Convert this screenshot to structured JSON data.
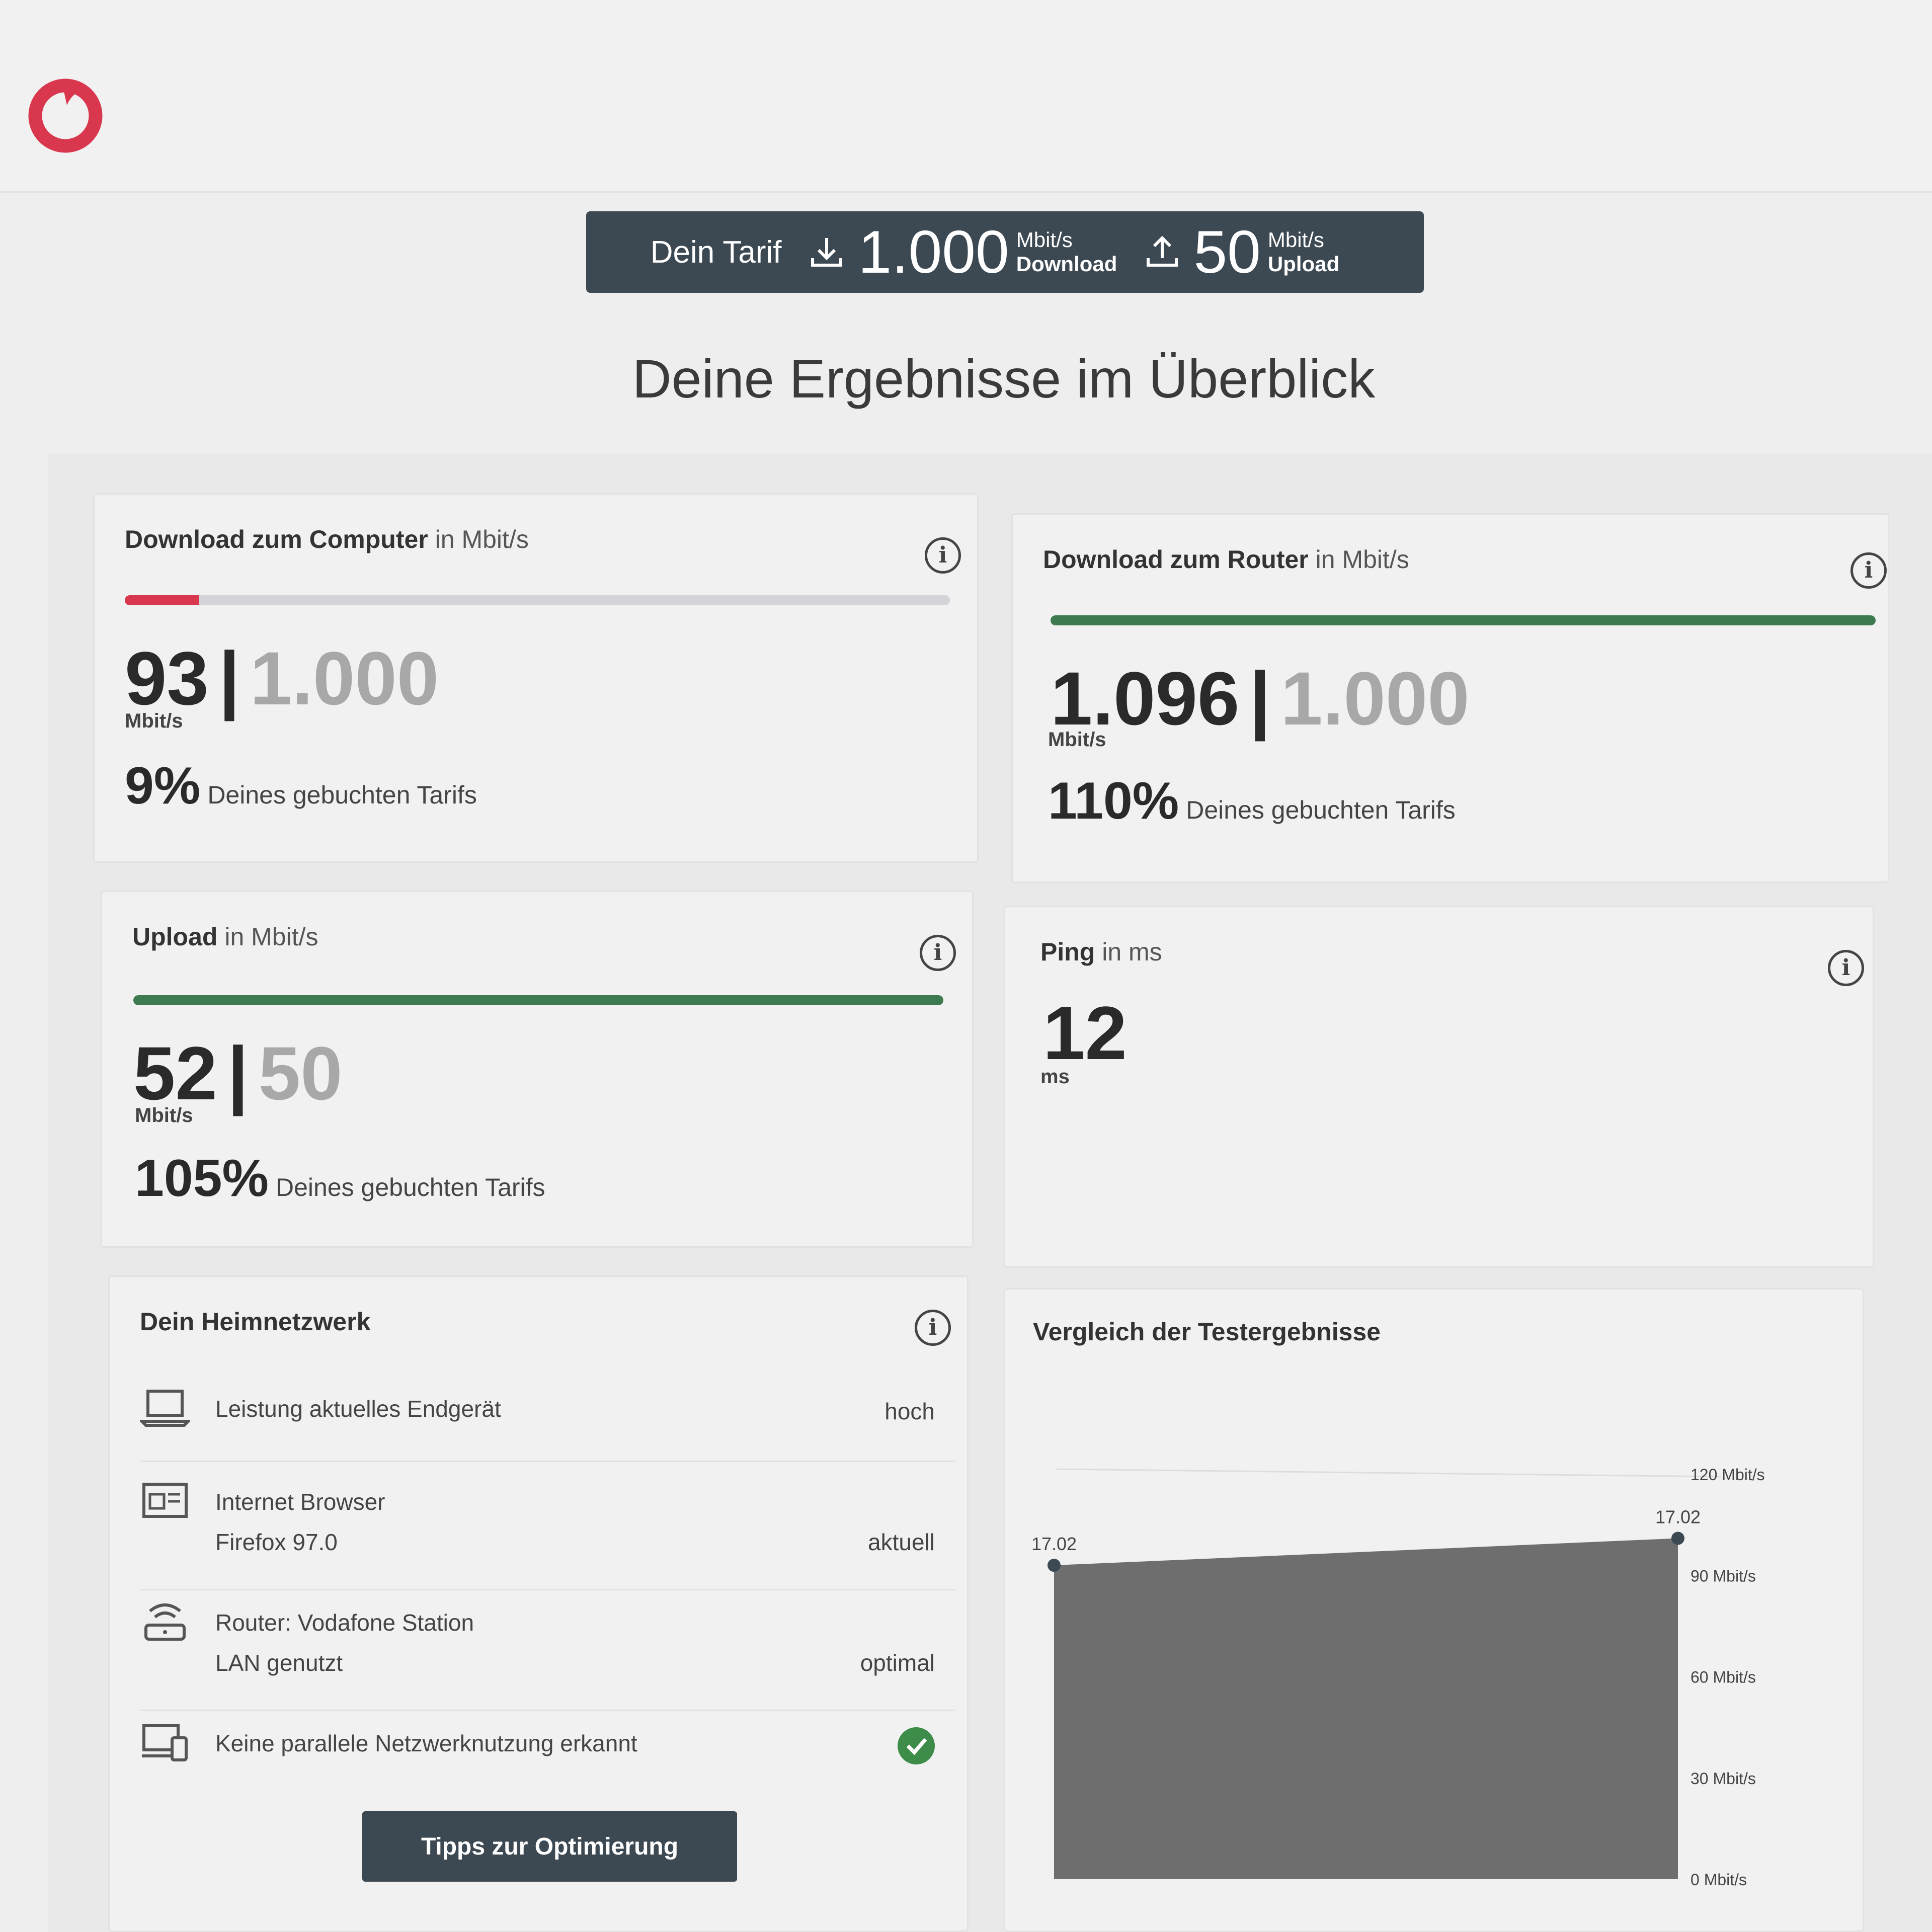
{
  "header": {
    "tarif_label": "Dein Tarif",
    "download_value": "1.000",
    "download_unit": "Mbit/s",
    "download_label": "Download",
    "upload_value": "50",
    "upload_unit": "Mbit/s",
    "upload_label": "Upload"
  },
  "headline": "Deine Ergebnisse im Überblick",
  "cards": {
    "download_computer": {
      "title_bold": "Download zum Computer",
      "title_sub": " in Mbit/s",
      "measured": "93",
      "booked": "1.000",
      "unit": "Mbit/s",
      "percent": "9%",
      "percent_label": "Deines gebuchten Tarifs",
      "progress": 0.09
    },
    "download_router": {
      "title_bold": "Download zum Router",
      "title_sub": " in Mbit/s",
      "measured": "1.096",
      "booked": "1.000",
      "unit": "Mbit/s",
      "percent": "110%",
      "percent_label": "Deines gebuchten Tarifs",
      "progress": 1.0
    },
    "upload": {
      "title_bold": "Upload",
      "title_sub": " in Mbit/s",
      "measured": "52",
      "booked": "50",
      "unit": "Mbit/s",
      "percent": "105%",
      "percent_label": "Deines gebuchten Tarifs",
      "progress": 1.0
    },
    "ping": {
      "title_bold": "Ping",
      "title_sub": " in ms",
      "value": "12",
      "unit": "ms"
    }
  },
  "heimnetz": {
    "title": "Dein Heimnetzwerk",
    "rows": [
      {
        "icon": "laptop-icon",
        "line1": "Leistung aktuelles Endgerät",
        "line2": "",
        "value": "hoch"
      },
      {
        "icon": "browser-icon",
        "line1": "Internet Browser",
        "line2": "Firefox 97.0",
        "value": "aktuell"
      },
      {
        "icon": "router-icon",
        "line1": "Router: Vodafone Station",
        "line2": "LAN genutzt",
        "value": "optimal"
      },
      {
        "icon": "devices-icon",
        "line1": "Keine parallele Netzwerknutzung erkannt",
        "line2": "",
        "value": ""
      }
    ],
    "button": "Tipps zur Optimierung"
  },
  "colors": {
    "brand_red": "#d9374e",
    "dark": "#3c4852",
    "good_green": "#3d7a50"
  },
  "chart_data": {
    "type": "area",
    "title": "Vergleich der Testergebnisse",
    "x": [
      "17.02",
      "17.02"
    ],
    "series": [
      {
        "values": [
          93,
          101
        ]
      }
    ],
    "ylim": [
      0,
      120
    ],
    "yticks": [
      0,
      30,
      60,
      90,
      120
    ],
    "ytick_labels": [
      "0 Mbit/s",
      "30 Mbit/s",
      "60 Mbit/s",
      "90 Mbit/s",
      "120 Mbit/s"
    ],
    "ylabel": "",
    "xlabel": "",
    "grid": false
  }
}
